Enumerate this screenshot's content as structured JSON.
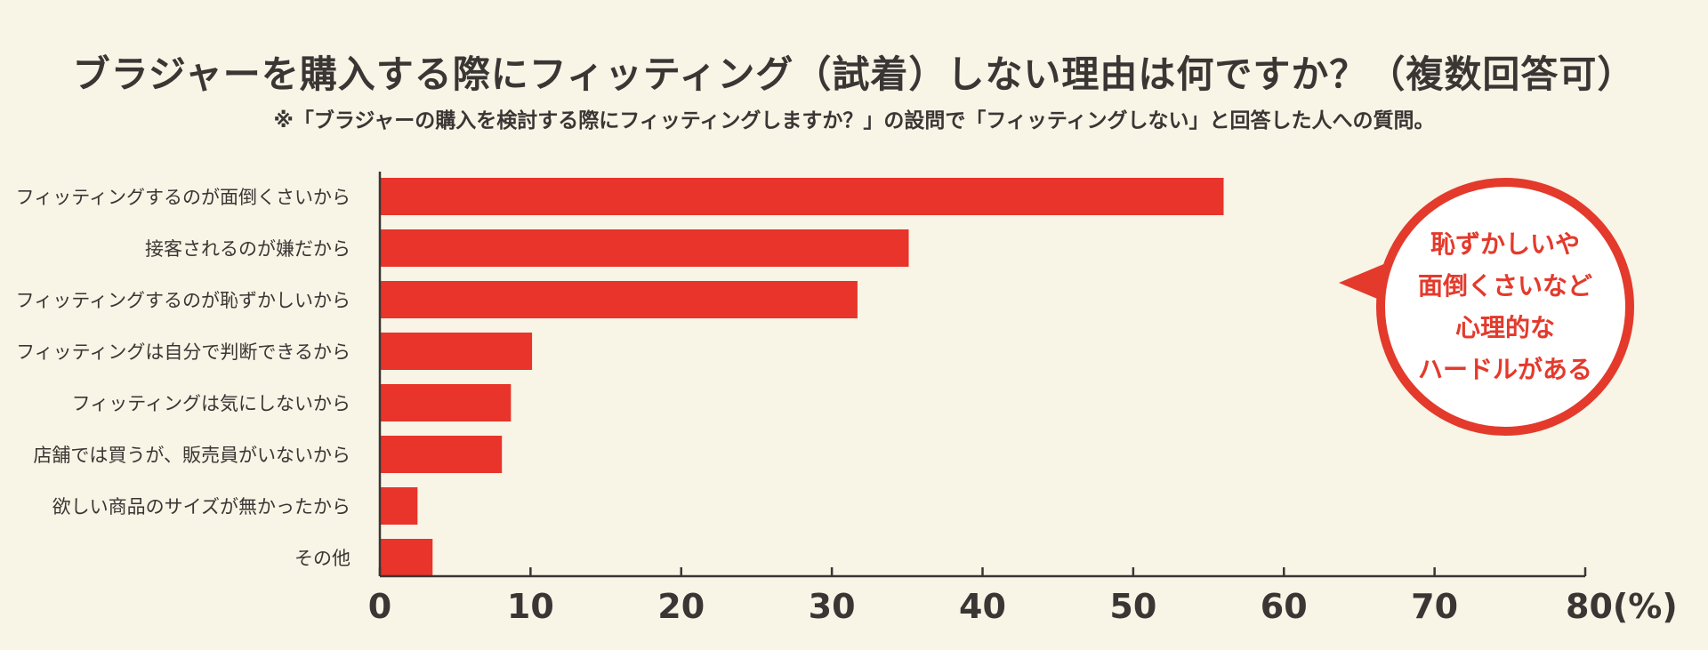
{
  "title": "ブラジャーを購入する際にフィッティング（試着）しない理由は何ですか？（複数回答可）",
  "subtitle": "※「ブラジャーの購入を検討する際にフィッティングしますか？」の設問で「フィッティングしない」と回答した人への質問。",
  "callout": {
    "lines": [
      "恥ずかしいや",
      "面倒くさいなど",
      "心理的な",
      "ハードルがある"
    ]
  },
  "colors": {
    "bar": "#e8342a",
    "callout_border": "#e33a2c",
    "background": "#f8f4e6",
    "text": "#3a3634"
  },
  "chart_data": {
    "type": "bar",
    "orientation": "horizontal",
    "categories": [
      "フィッティングするのが面倒くさいから",
      "接客されるのが嫌だから",
      "フィッティングするのが恥ずかしいから",
      "フィッティングは自分で判断できるから",
      "フィッティングは気にしないから",
      "店舗では買うが、販売員がいないから",
      "欲しい商品のサイズが無かったから",
      "その他"
    ],
    "values": [
      56,
      35.1,
      31.7,
      10.1,
      8.7,
      8.1,
      2.5,
      3.5
    ],
    "xlim": [
      0,
      80
    ],
    "xticks": [
      0,
      10,
      20,
      30,
      40,
      50,
      60,
      70,
      80
    ],
    "tick_labels": [
      "0",
      "10",
      "20",
      "30",
      "40",
      "50",
      "60",
      "70",
      "80(%)"
    ],
    "grid": false,
    "legend": "none"
  }
}
